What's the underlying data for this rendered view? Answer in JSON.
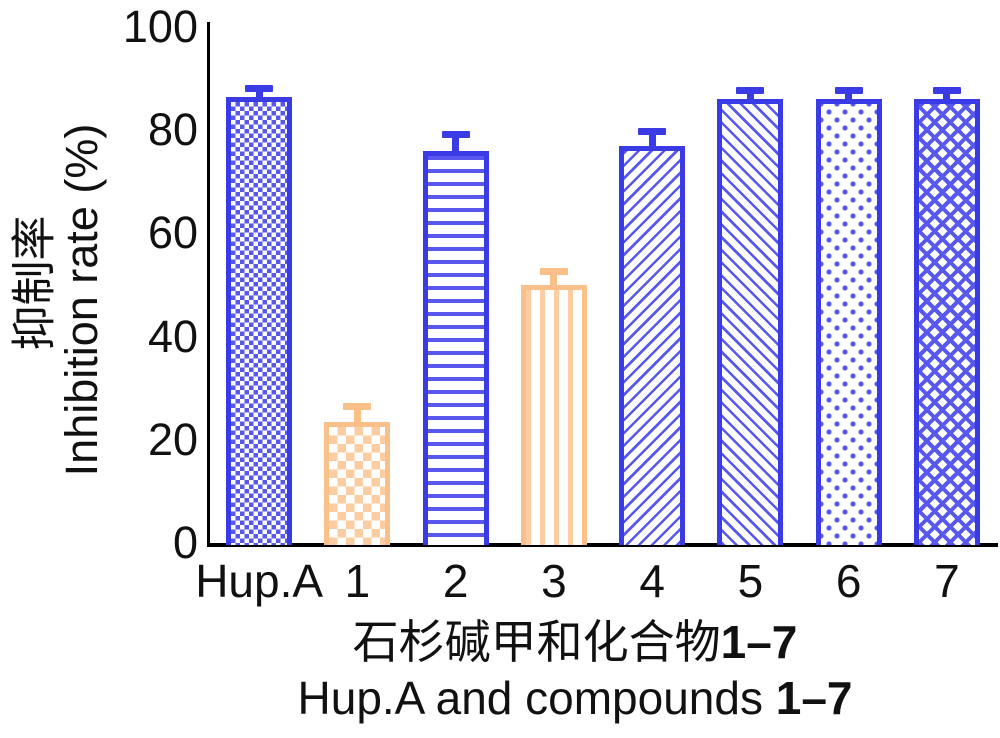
{
  "figure": {
    "background": "#ffffff",
    "axis_color": "#000000",
    "text_color": "#111111"
  },
  "y_axis": {
    "title_cn": "抑制率",
    "title_en": "Inhibition rate (%)",
    "ticks": [
      0,
      20,
      40,
      60,
      80,
      100
    ]
  },
  "x_axis": {
    "title_cn_prefix": "石杉碱甲和化合物",
    "title_cn_bold": "1–7",
    "title_en_prefix": "Hup.A and compounds ",
    "title_en_bold": "1–7"
  },
  "chart_data": {
    "type": "bar",
    "title": "",
    "categories": [
      "Hup.A",
      "1",
      "2",
      "3",
      "4",
      "5",
      "6",
      "7"
    ],
    "values": [
      86.5,
      23.5,
      76,
      50,
      77,
      86,
      86,
      86
    ],
    "errors_plus": [
      1,
      2.3,
      2.5,
      2,
      2,
      1,
      1,
      1
    ],
    "ylim": [
      0,
      100
    ],
    "ylabel_cn": "抑制率",
    "ylabel_en": "Inhibition rate (%)",
    "xlabel_cn": "石杉碱甲和化合物1–7",
    "xlabel_en": "Hup.A and compounds 1–7",
    "grid": false,
    "legend": "none",
    "bar_styles": [
      {
        "pattern": "checker-small",
        "color": "blue"
      },
      {
        "pattern": "checker-large",
        "color": "orange"
      },
      {
        "pattern": "hlines",
        "color": "blue"
      },
      {
        "pattern": "vlines",
        "color": "orange"
      },
      {
        "pattern": "diag-up",
        "color": "blue"
      },
      {
        "pattern": "diag-down",
        "color": "blue"
      },
      {
        "pattern": "dots",
        "color": "blue"
      },
      {
        "pattern": "diag-brick",
        "color": "blue"
      }
    ],
    "colors": {
      "blue": "#3b3be6",
      "blue_light": "#5858ee",
      "orange": "#fac08a",
      "orange_light": "#fccda2"
    }
  }
}
